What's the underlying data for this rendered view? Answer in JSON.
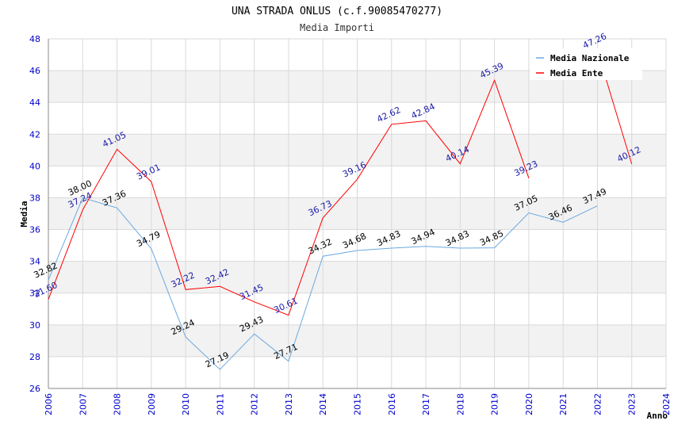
{
  "chart_data": {
    "type": "line",
    "title": "UNA STRADA ONLUS (c.f.90085470277)",
    "subtitle": "Media Importi",
    "xlabel": "Anno",
    "ylabel": "Media",
    "x": [
      2006,
      2007,
      2008,
      2009,
      2010,
      2011,
      2012,
      2013,
      2014,
      2015,
      2016,
      2017,
      2018,
      2019,
      2020,
      2021,
      2022,
      2023,
      2024
    ],
    "ylim": [
      26,
      48
    ],
    "yticks": [
      26,
      28,
      30,
      32,
      34,
      36,
      38,
      40,
      42,
      44,
      46,
      48
    ],
    "grid": true,
    "legend_position": "top-right",
    "series": [
      {
        "name": "Media Nazionale",
        "color": "#6aa9e0",
        "label_color": "#000000",
        "values": [
          32.82,
          38.0,
          37.36,
          34.79,
          29.24,
          27.19,
          29.43,
          27.71,
          34.32,
          34.68,
          34.83,
          34.94,
          34.83,
          34.85,
          37.05,
          36.46,
          37.49,
          null,
          null
        ],
        "labels": [
          "32.82",
          "38.00",
          "37.36",
          "34.79",
          "29.24",
          "27.19",
          "29.43",
          "27.71",
          "34.32",
          "34.68",
          "34.83",
          "34.94",
          "34.83",
          "34.85",
          "37.05",
          "36.46",
          "37.49",
          "",
          ""
        ]
      },
      {
        "name": "Media Ente",
        "color": "#ff0000",
        "label_color": "#1a1aa6",
        "values": [
          31.6,
          37.24,
          41.05,
          39.01,
          32.22,
          32.42,
          31.45,
          30.61,
          36.73,
          39.16,
          42.62,
          42.84,
          40.14,
          45.39,
          39.23,
          null,
          47.26,
          40.12,
          null
        ],
        "labels": [
          "31.60",
          "37.24",
          "41.05",
          "39.01",
          "32.22",
          "32.42",
          "31.45",
          "30.61",
          "36.73",
          "39.16",
          "42.62",
          "42.84",
          "40.14",
          "45.39",
          "39.23",
          "",
          "47.26",
          "40.12",
          ""
        ]
      }
    ]
  }
}
